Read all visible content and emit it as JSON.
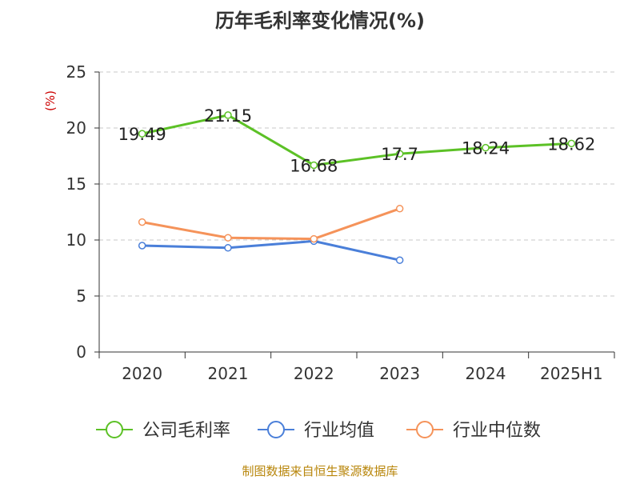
{
  "chart_data": {
    "type": "line",
    "title": "历年毛利率变化情况(%)",
    "ylabel": "(%)",
    "categories": [
      "2020",
      "2021",
      "2022",
      "2023",
      "2024",
      "2025H1"
    ],
    "ylim": [
      0,
      25
    ],
    "yticks": [
      0,
      5,
      10,
      15,
      20,
      25
    ],
    "grid": true,
    "legend_position": "bottom",
    "series": [
      {
        "name": "公司毛利率",
        "color": "#5cc126",
        "values": [
          19.49,
          21.15,
          16.68,
          17.7,
          18.24,
          18.62
        ],
        "labels": [
          "19.49",
          "21.15",
          "16.68",
          "17.7",
          "18.24",
          "18.62"
        ],
        "show_labels": true
      },
      {
        "name": "行业均值",
        "color": "#4a7fd9",
        "values": [
          9.5,
          9.3,
          9.9,
          8.2,
          null,
          null
        ],
        "show_labels": false
      },
      {
        "name": "行业中位数",
        "color": "#f5935a",
        "values": [
          11.6,
          10.2,
          10.1,
          12.8,
          null,
          null
        ],
        "show_labels": false
      }
    ],
    "source": "制图数据来自恒生聚源数据库"
  }
}
